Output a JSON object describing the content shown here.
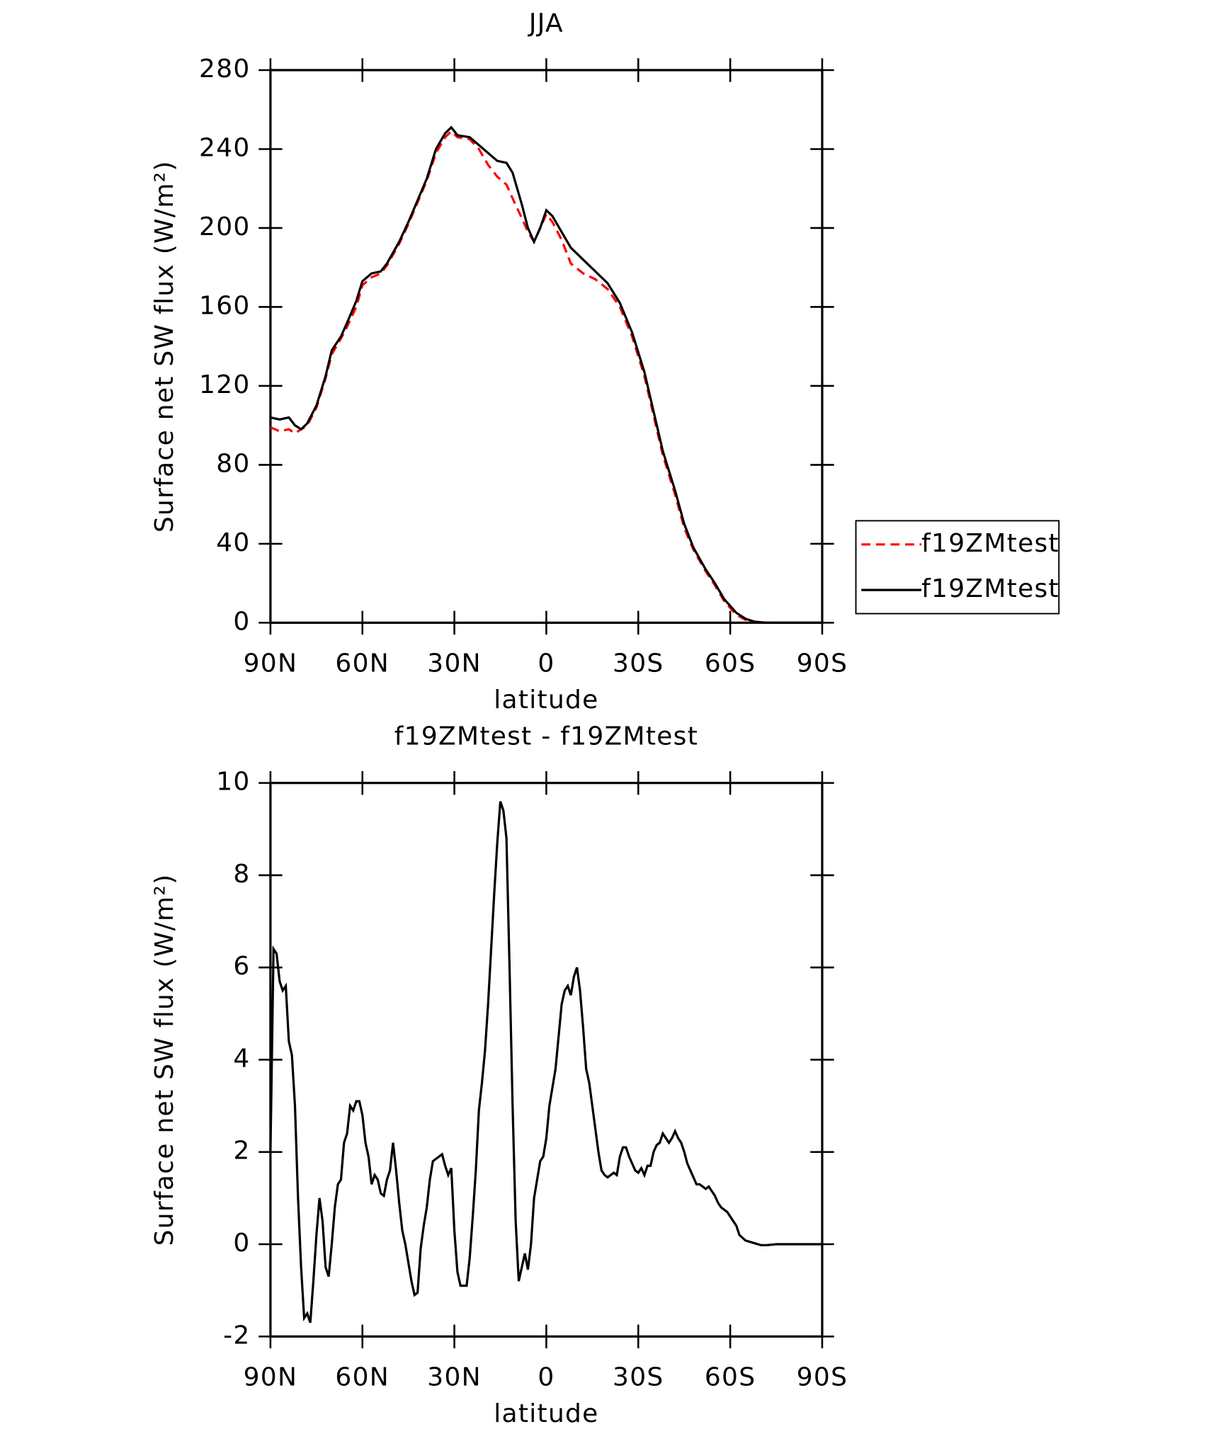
{
  "chart_data": [
    {
      "type": "line",
      "title": "JJA",
      "xlabel": "latitude",
      "ylabel": "Surface net SW flux (W/m²)",
      "x": [
        90,
        87,
        84,
        82,
        80,
        78,
        75,
        72,
        70,
        67,
        65,
        62,
        60,
        57,
        54,
        52,
        48,
        45,
        42,
        39,
        36,
        33,
        31,
        29,
        25,
        22,
        19,
        16,
        13,
        11,
        8,
        6,
        4,
        2,
        0,
        -2,
        -5,
        -8,
        -12,
        -16,
        -20,
        -24,
        -28,
        -32,
        -35,
        -38,
        -42,
        -45,
        -48,
        -52,
        -55,
        -58,
        -62,
        -65,
        -68,
        -72,
        -80,
        -90
      ],
      "series": [
        {
          "name": "f19ZMtest",
          "color": "#ff0000",
          "dashed": true,
          "values": [
            99,
            97,
            98,
            96,
            98,
            100,
            109,
            124,
            136,
            144,
            150,
            160,
            171,
            175,
            177,
            181,
            192,
            202,
            213,
            224,
            238,
            246,
            249,
            246,
            245,
            240,
            232,
            226,
            222,
            215,
            205,
            198,
            193,
            200,
            207,
            203,
            194,
            182,
            177,
            174,
            169,
            160,
            145,
            125,
            105,
            85,
            65,
            48,
            37,
            26,
            19,
            11,
            4,
            1.5,
            0.4,
            0,
            0,
            0
          ]
        },
        {
          "name": "f19ZMtest",
          "color": "#000000",
          "dashed": false,
          "values": [
            104,
            103,
            104,
            100,
            98,
            101,
            110,
            125,
            138,
            145,
            152,
            163,
            173,
            177,
            178,
            182,
            193,
            203,
            214,
            225,
            240,
            248,
            251,
            247,
            246,
            242,
            238,
            234,
            233,
            228,
            212,
            200,
            193,
            200,
            209,
            206,
            198,
            190,
            184,
            178,
            172,
            162,
            147,
            127,
            107,
            87,
            67,
            50,
            38,
            27,
            20,
            12,
            5,
            2,
            0.5,
            0,
            0,
            0
          ]
        }
      ],
      "xlim": [
        90,
        -90
      ],
      "xticks": [
        {
          "value": 90,
          "label": "90N"
        },
        {
          "value": 60,
          "label": "60N"
        },
        {
          "value": 30,
          "label": "30N"
        },
        0,
        {
          "value": -30,
          "label": "30S"
        },
        {
          "value": -60,
          "label": "60S"
        },
        {
          "value": -90,
          "label": "90S"
        }
      ],
      "ylim": [
        0,
        280
      ],
      "yticks": [
        0,
        40,
        80,
        120,
        160,
        200,
        240,
        280
      ],
      "legend": "right"
    },
    {
      "type": "line",
      "title": "f19ZMtest - f19ZMtest",
      "xlabel": "latitude",
      "ylabel": "Surface net SW flux (W/m²)",
      "x": [
        90,
        89,
        88,
        87,
        86,
        85,
        84,
        83,
        82,
        81,
        80,
        79,
        78,
        77,
        76,
        75,
        74,
        73,
        72,
        71,
        70,
        69,
        68,
        67,
        66,
        65,
        64,
        63,
        62,
        61,
        60,
        59,
        58,
        57,
        56,
        55,
        54,
        53,
        52,
        51,
        50,
        49,
        48,
        47,
        46,
        45,
        44,
        43,
        42,
        41,
        40,
        39,
        38,
        37,
        36,
        35,
        34,
        33,
        32,
        31,
        30,
        29,
        28,
        27,
        26,
        25,
        24,
        23,
        22,
        21,
        20,
        19,
        18,
        17,
        16,
        15,
        14,
        13,
        12,
        11,
        10,
        9,
        8,
        7,
        6,
        5,
        4,
        3,
        2,
        1,
        0,
        -1,
        -2,
        -3,
        -4,
        -5,
        -6,
        -7,
        -8,
        -9,
        -10,
        -11,
        -12,
        -13,
        -14,
        -15,
        -16,
        -17,
        -18,
        -19,
        -20,
        -21,
        -22,
        -23,
        -24,
        -25,
        -26,
        -27,
        -28,
        -29,
        -30,
        -31,
        -32,
        -33,
        -34,
        -35,
        -36,
        -37,
        -38,
        -39,
        -40,
        -41,
        -42,
        -43,
        -44,
        -45,
        -46,
        -47,
        -48,
        -49,
        -50,
        -51,
        -52,
        -53,
        -54,
        -55,
        -56,
        -57,
        -58,
        -59,
        -60,
        -62,
        -63,
        -65,
        -68,
        -70,
        -72,
        -75,
        -80,
        -90
      ],
      "series": [
        {
          "name": "f19ZMtest - f19ZMtest",
          "color": "#000000",
          "dashed": false,
          "values": [
            2,
            6.4,
            6.3,
            5.7,
            5.5,
            5.6,
            4.4,
            4.1,
            3.0,
            1.0,
            -0.5,
            -1.6,
            -1.5,
            -1.7,
            -0.8,
            0.2,
            1.0,
            0.5,
            -0.5,
            -0.7,
            0.0,
            0.8,
            1.3,
            1.4,
            2.2,
            2.4,
            3.0,
            2.9,
            3.1,
            3.1,
            2.8,
            2.2,
            1.9,
            1.3,
            1.5,
            1.4,
            1.1,
            1.05,
            1.4,
            1.6,
            2.2,
            1.6,
            0.9,
            0.3,
            0.0,
            -0.4,
            -0.8,
            -1.1,
            -1.05,
            -0.1,
            0.4,
            0.8,
            1.4,
            1.8,
            1.85,
            1.9,
            1.95,
            1.7,
            1.5,
            1.65,
            0.3,
            -0.6,
            -0.9,
            -0.9,
            -0.9,
            -0.3,
            0.6,
            1.6,
            2.9,
            3.5,
            4.2,
            5.2,
            6.4,
            7.6,
            8.7,
            9.6,
            9.4,
            8.8,
            6.0,
            3.0,
            0.5,
            -0.8,
            -0.5,
            -0.2,
            -0.55,
            0.0,
            1.0,
            1.4,
            1.8,
            1.9,
            2.3,
            3.0,
            3.4,
            3.8,
            4.5,
            5.2,
            5.5,
            5.6,
            5.4,
            5.8,
            6.0,
            5.5,
            4.7,
            3.8,
            3.5,
            3.0,
            2.5,
            2.0,
            1.6,
            1.5,
            1.45,
            1.5,
            1.55,
            1.5,
            1.9,
            2.1,
            2.1,
            1.9,
            1.75,
            1.6,
            1.55,
            1.65,
            1.5,
            1.7,
            1.7,
            2.0,
            2.15,
            2.2,
            2.4,
            2.3,
            2.2,
            2.3,
            2.45,
            2.3,
            2.2,
            2.0,
            1.75,
            1.6,
            1.45,
            1.3,
            1.3,
            1.25,
            1.2,
            1.25,
            1.15,
            1.05,
            0.9,
            0.8,
            0.75,
            0.7,
            0.6,
            0.4,
            0.2,
            0.08,
            0.02,
            -0.02,
            -0.02,
            0,
            0,
            0
          ]
        }
      ],
      "xlim": [
        90,
        -90
      ],
      "xticks": [
        {
          "value": 90,
          "label": "90N"
        },
        {
          "value": 60,
          "label": "60N"
        },
        {
          "value": 30,
          "label": "30N"
        },
        0,
        {
          "value": -30,
          "label": "30S"
        },
        {
          "value": -60,
          "label": "60S"
        },
        {
          "value": -90,
          "label": "90S"
        }
      ],
      "ylim": [
        -2,
        10
      ],
      "yticks": [
        -2,
        0,
        2,
        4,
        6,
        8,
        10
      ]
    }
  ]
}
